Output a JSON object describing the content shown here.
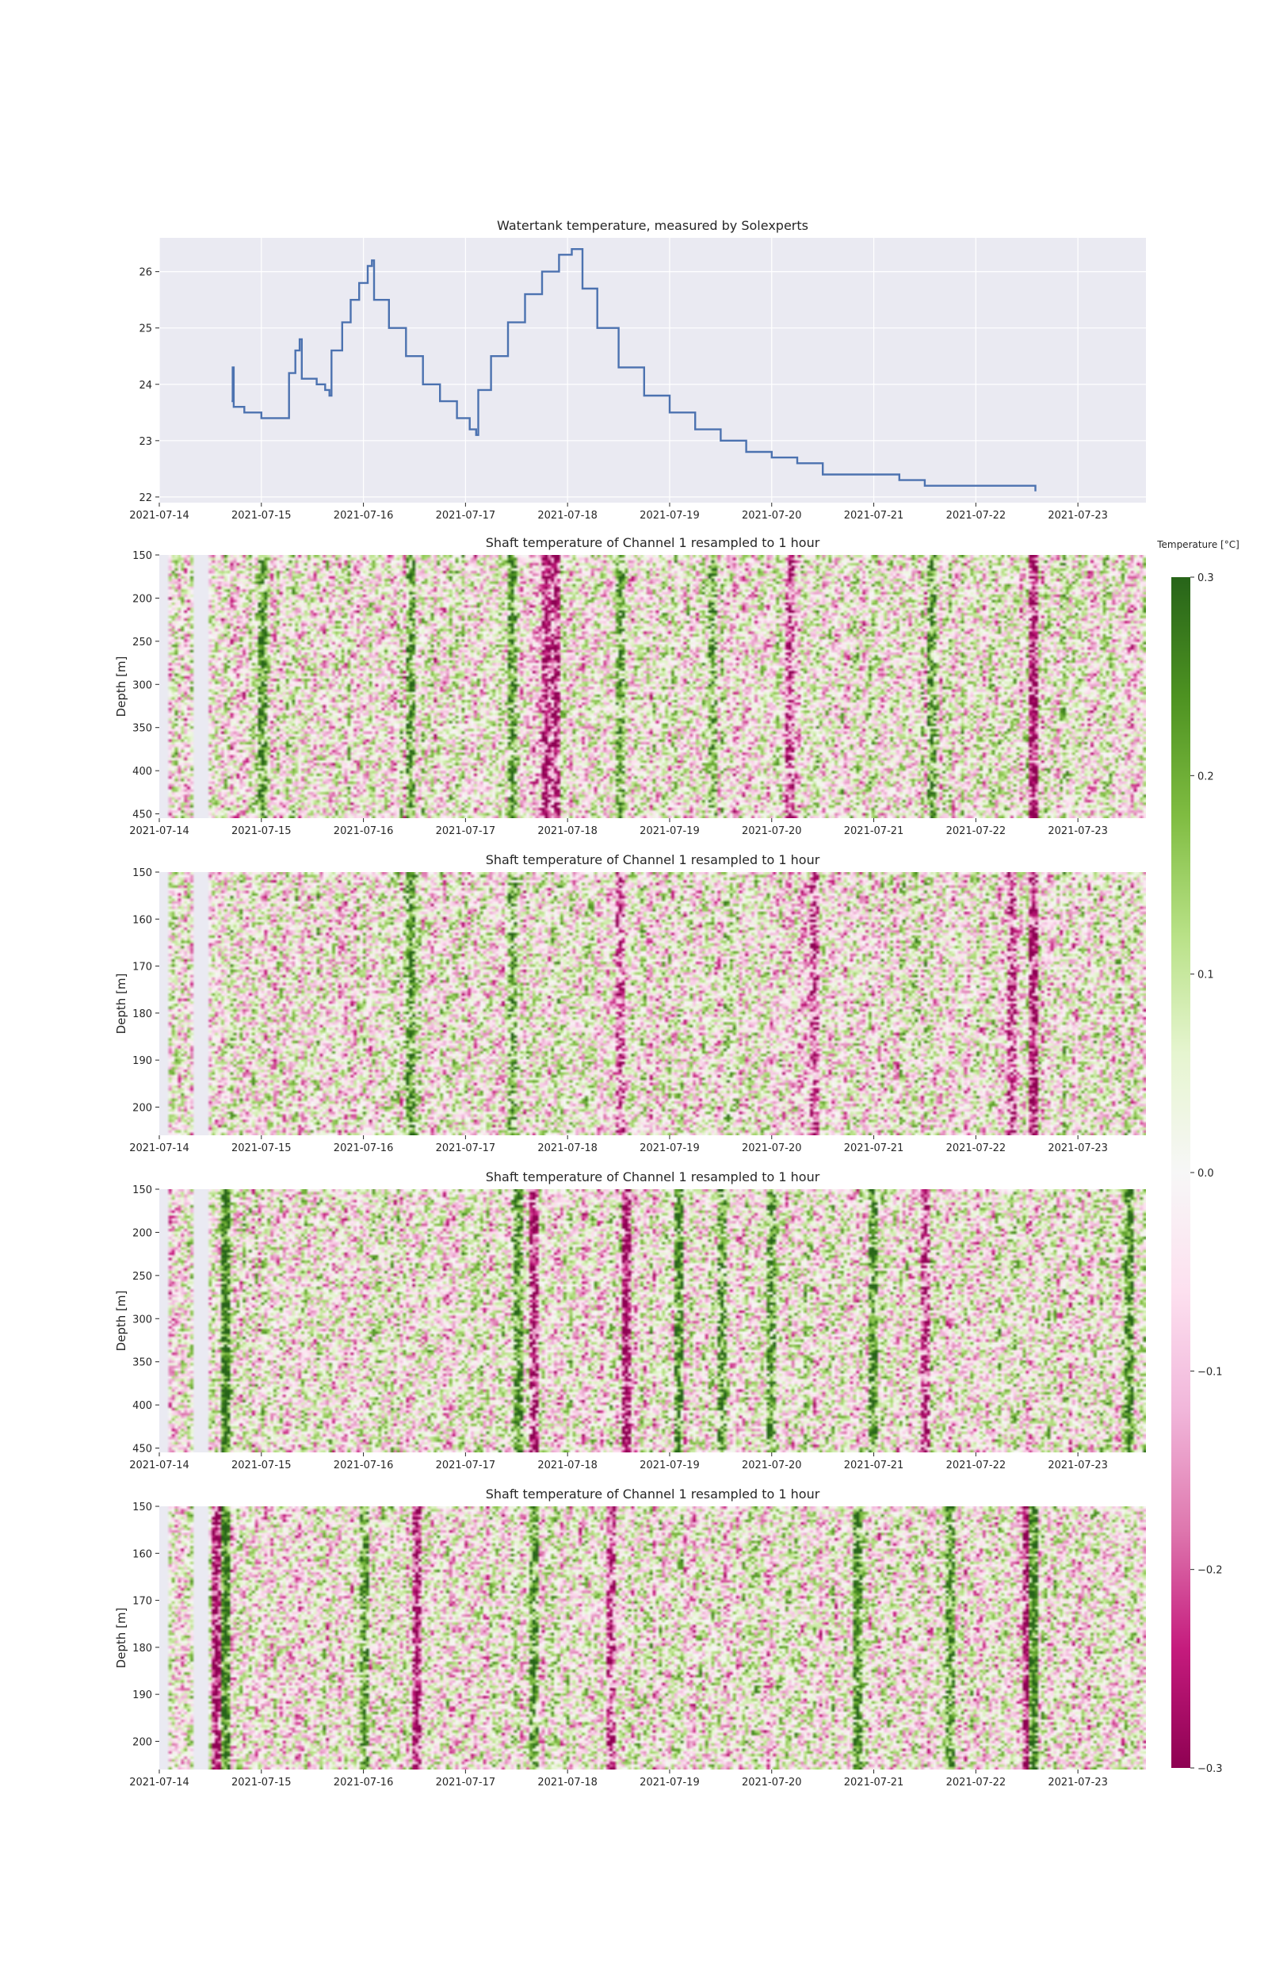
{
  "chart_data": [
    {
      "type": "line",
      "title": "Watertank temperature, measured by Solexperts",
      "xlabel": "",
      "ylabel": "",
      "x_ticks": [
        "2021-07-14",
        "2021-07-15",
        "2021-07-16",
        "2021-07-17",
        "2021-07-18",
        "2021-07-19",
        "2021-07-20",
        "2021-07-21",
        "2021-07-22",
        "2021-07-23"
      ],
      "y_ticks": [
        "22",
        "23",
        "24",
        "25",
        "26"
      ],
      "xlim": [
        "2021-07-14 00:00",
        "2021-07-23 16:00"
      ],
      "ylim": [
        21.9,
        26.6
      ],
      "grid": true,
      "line_color": "#4c72b0",
      "points": [
        {
          "x": "2021-07-14 17:00",
          "y": 23.7
        },
        {
          "x": "2021-07-14 17:15",
          "y": 24.3
        },
        {
          "x": "2021-07-14 17:30",
          "y": 23.6
        },
        {
          "x": "2021-07-14 19:00",
          "y": 23.6
        },
        {
          "x": "2021-07-14 20:00",
          "y": 23.5
        },
        {
          "x": "2021-07-14 23:00",
          "y": 23.5
        },
        {
          "x": "2021-07-15 00:00",
          "y": 23.4
        },
        {
          "x": "2021-07-15 06:00",
          "y": 23.4
        },
        {
          "x": "2021-07-15 06:30",
          "y": 24.2
        },
        {
          "x": "2021-07-15 08:00",
          "y": 24.6
        },
        {
          "x": "2021-07-15 09:00",
          "y": 24.8
        },
        {
          "x": "2021-07-15 09:30",
          "y": 24.1
        },
        {
          "x": "2021-07-15 12:00",
          "y": 24.1
        },
        {
          "x": "2021-07-15 13:00",
          "y": 24.0
        },
        {
          "x": "2021-07-15 15:00",
          "y": 23.9
        },
        {
          "x": "2021-07-15 16:00",
          "y": 23.8
        },
        {
          "x": "2021-07-15 16:30",
          "y": 24.6
        },
        {
          "x": "2021-07-15 19:00",
          "y": 25.1
        },
        {
          "x": "2021-07-15 21:00",
          "y": 25.5
        },
        {
          "x": "2021-07-15 23:00",
          "y": 25.8
        },
        {
          "x": "2021-07-16 01:00",
          "y": 26.1
        },
        {
          "x": "2021-07-16 02:00",
          "y": 26.2
        },
        {
          "x": "2021-07-16 02:30",
          "y": 25.5
        },
        {
          "x": "2021-07-16 06:00",
          "y": 25.0
        },
        {
          "x": "2021-07-16 10:00",
          "y": 24.5
        },
        {
          "x": "2021-07-16 14:00",
          "y": 24.0
        },
        {
          "x": "2021-07-16 18:00",
          "y": 23.7
        },
        {
          "x": "2021-07-16 22:00",
          "y": 23.4
        },
        {
          "x": "2021-07-17 01:00",
          "y": 23.2
        },
        {
          "x": "2021-07-17 02:30",
          "y": 23.1
        },
        {
          "x": "2021-07-17 03:00",
          "y": 23.9
        },
        {
          "x": "2021-07-17 06:00",
          "y": 24.5
        },
        {
          "x": "2021-07-17 10:00",
          "y": 25.1
        },
        {
          "x": "2021-07-17 14:00",
          "y": 25.6
        },
        {
          "x": "2021-07-17 18:00",
          "y": 26.0
        },
        {
          "x": "2021-07-17 22:00",
          "y": 26.3
        },
        {
          "x": "2021-07-18 00:00",
          "y": 26.3
        },
        {
          "x": "2021-07-18 01:00",
          "y": 26.4
        },
        {
          "x": "2021-07-18 03:00",
          "y": 26.4
        },
        {
          "x": "2021-07-18 03:30",
          "y": 25.7
        },
        {
          "x": "2021-07-18 07:00",
          "y": 25.0
        },
        {
          "x": "2021-07-18 12:00",
          "y": 24.3
        },
        {
          "x": "2021-07-18 18:00",
          "y": 23.8
        },
        {
          "x": "2021-07-19 00:00",
          "y": 23.5
        },
        {
          "x": "2021-07-19 06:00",
          "y": 23.2
        },
        {
          "x": "2021-07-19 12:00",
          "y": 23.0
        },
        {
          "x": "2021-07-19 18:00",
          "y": 22.8
        },
        {
          "x": "2021-07-20 00:00",
          "y": 22.7
        },
        {
          "x": "2021-07-20 06:00",
          "y": 22.6
        },
        {
          "x": "2021-07-20 12:00",
          "y": 22.4
        },
        {
          "x": "2021-07-21 00:00",
          "y": 22.4
        },
        {
          "x": "2021-07-21 06:00",
          "y": 22.3
        },
        {
          "x": "2021-07-21 12:00",
          "y": 22.2
        },
        {
          "x": "2021-07-21 18:00",
          "y": 22.2
        },
        {
          "x": "2021-07-22 00:00",
          "y": 22.2
        },
        {
          "x": "2021-07-22 06:00",
          "y": 22.2
        },
        {
          "x": "2021-07-22 14:00",
          "y": 22.2
        },
        {
          "x": "2021-07-22 14:00",
          "y": 22.1
        }
      ]
    },
    {
      "type": "heatmap",
      "title": "Shaft temperature of Channel 1 resampled to 1 hour",
      "ylabel": "Depth [m]",
      "x_ticks": [
        "2021-07-14",
        "2021-07-15",
        "2021-07-16",
        "2021-07-17",
        "2021-07-18",
        "2021-07-19",
        "2021-07-20",
        "2021-07-21",
        "2021-07-22",
        "2021-07-23"
      ],
      "y_ticks": [
        "150",
        "200",
        "250",
        "300",
        "350",
        "400",
        "450"
      ],
      "ylim": [
        455,
        150
      ],
      "xlim": [
        "2021-07-14 00:00",
        "2021-07-23 16:00"
      ],
      "no_data_intervals": [
        [
          "2021-07-14 00:00",
          "2021-07-14 02:00"
        ],
        [
          "2021-07-14 08:00",
          "2021-07-14 11:00"
        ]
      ],
      "colormap": "PiYG",
      "vmin": -0.3,
      "vmax": 0.3,
      "strong_columns": [
        {
          "x": "2021-07-15 00:00",
          "value": 0.22
        },
        {
          "x": "2021-07-16 11:00",
          "value": 0.2
        },
        {
          "x": "2021-07-17 11:00",
          "value": 0.22
        },
        {
          "x": "2021-07-17 19:00",
          "value": -0.28
        },
        {
          "x": "2021-07-17 21:00",
          "value": -0.25
        },
        {
          "x": "2021-07-18 12:00",
          "value": 0.2
        },
        {
          "x": "2021-07-19 10:00",
          "value": 0.2
        },
        {
          "x": "2021-07-20 04:00",
          "value": -0.2
        },
        {
          "x": "2021-07-21 14:00",
          "value": 0.22
        },
        {
          "x": "2021-07-22 14:00",
          "value": -0.3
        }
      ],
      "texture_seed": 11
    },
    {
      "type": "heatmap",
      "title": "Shaft temperature of Channel 1 resampled to 1 hour",
      "ylabel": "Depth [m]",
      "x_ticks": [
        "2021-07-14",
        "2021-07-15",
        "2021-07-16",
        "2021-07-17",
        "2021-07-18",
        "2021-07-19",
        "2021-07-20",
        "2021-07-21",
        "2021-07-22",
        "2021-07-23"
      ],
      "y_ticks": [
        "150",
        "160",
        "170",
        "180",
        "190",
        "200"
      ],
      "ylim": [
        206,
        150
      ],
      "xlim": [
        "2021-07-14 00:00",
        "2021-07-23 16:00"
      ],
      "no_data_intervals": [
        [
          "2021-07-14 00:00",
          "2021-07-14 02:00"
        ],
        [
          "2021-07-14 08:00",
          "2021-07-14 11:00"
        ]
      ],
      "colormap": "PiYG",
      "vmin": -0.3,
      "vmax": 0.3,
      "strong_columns": [
        {
          "x": "2021-07-16 11:00",
          "value": 0.22
        },
        {
          "x": "2021-07-17 11:00",
          "value": 0.18
        },
        {
          "x": "2021-07-18 12:00",
          "value": -0.2
        },
        {
          "x": "2021-07-20 10:00",
          "value": -0.2
        },
        {
          "x": "2021-07-22 09:00",
          "value": -0.22
        },
        {
          "x": "2021-07-22 14:00",
          "value": -0.28
        }
      ],
      "texture_seed": 23
    },
    {
      "type": "heatmap",
      "title": "Shaft temperature of Channel 1 resampled to 1 hour",
      "ylabel": "Depth [m]",
      "x_ticks": [
        "2021-07-14",
        "2021-07-15",
        "2021-07-16",
        "2021-07-17",
        "2021-07-18",
        "2021-07-19",
        "2021-07-20",
        "2021-07-21",
        "2021-07-22",
        "2021-07-23"
      ],
      "y_ticks": [
        "150",
        "200",
        "250",
        "300",
        "350",
        "400",
        "450"
      ],
      "ylim": [
        455,
        150
      ],
      "xlim": [
        "2021-07-14 00:00",
        "2021-07-23 16:00"
      ],
      "no_data_intervals": [
        [
          "2021-07-14 00:00",
          "2021-07-14 02:00"
        ],
        [
          "2021-07-14 08:00",
          "2021-07-14 11:00"
        ]
      ],
      "colormap": "PiYG",
      "vmin": -0.3,
      "vmax": 0.3,
      "strong_columns": [
        {
          "x": "2021-07-14 15:00",
          "value": 0.3
        },
        {
          "x": "2021-07-17 12:00",
          "value": 0.25
        },
        {
          "x": "2021-07-17 16:00",
          "value": -0.25
        },
        {
          "x": "2021-07-18 14:00",
          "value": -0.3
        },
        {
          "x": "2021-07-19 02:00",
          "value": 0.25
        },
        {
          "x": "2021-07-19 12:00",
          "value": 0.22
        },
        {
          "x": "2021-07-20 00:00",
          "value": 0.22
        },
        {
          "x": "2021-07-21 00:00",
          "value": 0.22
        },
        {
          "x": "2021-07-21 12:00",
          "value": -0.22
        },
        {
          "x": "2021-07-23 12:00",
          "value": 0.25
        }
      ],
      "texture_seed": 37
    },
    {
      "type": "heatmap",
      "title": "Shaft temperature of Channel 1 resampled to 1 hour",
      "ylabel": "Depth [m]",
      "x_ticks": [
        "2021-07-14",
        "2021-07-15",
        "2021-07-16",
        "2021-07-17",
        "2021-07-18",
        "2021-07-19",
        "2021-07-20",
        "2021-07-21",
        "2021-07-22",
        "2021-07-23"
      ],
      "y_ticks": [
        "150",
        "160",
        "170",
        "180",
        "190",
        "200"
      ],
      "ylim": [
        206,
        150
      ],
      "xlim": [
        "2021-07-14 00:00",
        "2021-07-23 16:00"
      ],
      "no_data_intervals": [
        [
          "2021-07-14 00:00",
          "2021-07-14 02:00"
        ],
        [
          "2021-07-14 08:00",
          "2021-07-14 11:00"
        ]
      ],
      "colormap": "PiYG",
      "vmin": -0.3,
      "vmax": 0.3,
      "strong_columns": [
        {
          "x": "2021-07-14 13:00",
          "value": -0.3
        },
        {
          "x": "2021-07-14 15:00",
          "value": 0.3
        },
        {
          "x": "2021-07-16 00:00",
          "value": 0.22
        },
        {
          "x": "2021-07-16 12:00",
          "value": -0.28
        },
        {
          "x": "2021-07-17 16:00",
          "value": 0.22
        },
        {
          "x": "2021-07-18 10:00",
          "value": -0.22
        },
        {
          "x": "2021-07-20 20:00",
          "value": 0.25
        },
        {
          "x": "2021-07-21 18:00",
          "value": 0.22
        },
        {
          "x": "2021-07-22 12:00",
          "value": -0.28
        },
        {
          "x": "2021-07-22 14:00",
          "value": 0.28
        }
      ],
      "texture_seed": 53
    }
  ],
  "colorbar": {
    "title": "Temperature [°C]",
    "ticks": [
      "0.3",
      "0.2",
      "0.1",
      "0.0",
      "−0.1",
      "−0.2",
      "−0.3"
    ],
    "tick_values": [
      0.3,
      0.2,
      0.1,
      0.0,
      -0.1,
      -0.2,
      -0.3
    ],
    "vmin": -0.3,
    "vmax": 0.3
  }
}
